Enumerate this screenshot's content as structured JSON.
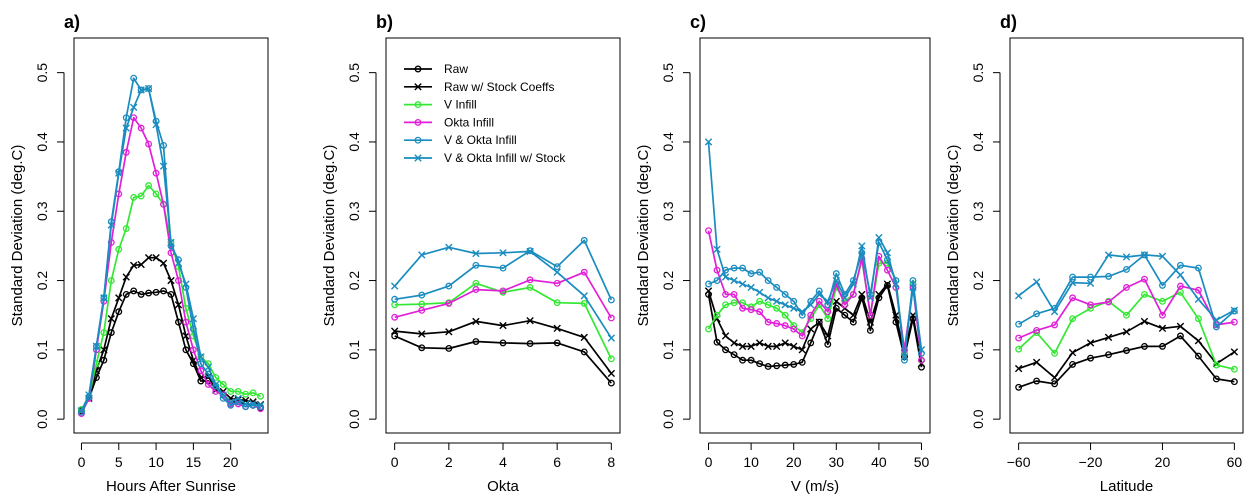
{
  "colors": {
    "raw": "#000000",
    "raw_stock": "#000000",
    "v_infill": "#33e833",
    "okta_infill": "#e020d8",
    "v_okta_infill": "#1a8cbf",
    "v_okta_stock": "#1a8cbf"
  },
  "legend": [
    {
      "key": "raw",
      "label": "Raw",
      "marker": "circle"
    },
    {
      "key": "raw_stock",
      "label": "Raw w/ Stock Coeffs",
      "marker": "x"
    },
    {
      "key": "v_infill",
      "label": "V Infill",
      "marker": "circle"
    },
    {
      "key": "okta_infill",
      "label": "Okta Infill",
      "marker": "circle"
    },
    {
      "key": "v_okta_infill",
      "label": "V & Okta Infill",
      "marker": "circle"
    },
    {
      "key": "v_okta_stock",
      "label": "V & Okta Infill w/ Stock",
      "marker": "x"
    }
  ],
  "chart_data": [
    {
      "type": "line",
      "panel": "a)",
      "xlabel": "Hours After Sunrise",
      "ylabel": "Standard Deviation (deg.C)",
      "xlim": [
        -1,
        25
      ],
      "ylim": [
        -0.02,
        0.55
      ],
      "xticks": [
        0,
        5,
        10,
        15,
        20
      ],
      "xtick_labels": [
        "0",
        "5",
        "10",
        "15",
        "20"
      ],
      "yticks": [
        0.0,
        0.1,
        0.2,
        0.3,
        0.4,
        0.5
      ],
      "ytick_labels": [
        "0.0",
        "0.1",
        "0.2",
        "0.3",
        "0.4",
        "0.5"
      ],
      "x": [
        0,
        1,
        2,
        3,
        4,
        5,
        6,
        7,
        8,
        9,
        10,
        11,
        12,
        13,
        14,
        15,
        16,
        17,
        18,
        19,
        20,
        21,
        22,
        23,
        24
      ],
      "series": [
        {
          "key": "raw",
          "values": [
            0.012,
            0.03,
            0.06,
            0.085,
            0.125,
            0.155,
            0.18,
            0.185,
            0.18,
            0.182,
            0.183,
            0.185,
            0.18,
            0.14,
            0.1,
            0.08,
            0.055,
            0.055,
            0.045,
            0.035,
            0.025,
            0.025,
            0.022,
            0.02,
            0.016
          ]
        },
        {
          "key": "raw_stock",
          "values": [
            0.012,
            0.03,
            0.07,
            0.1,
            0.145,
            0.175,
            0.205,
            0.222,
            0.223,
            0.233,
            0.233,
            0.225,
            0.2,
            0.165,
            0.12,
            0.085,
            0.06,
            0.062,
            0.042,
            0.04,
            0.03,
            0.028,
            0.027,
            0.025,
            0.021
          ]
        },
        {
          "key": "v_infill",
          "values": [
            0.014,
            0.032,
            0.08,
            0.125,
            0.2,
            0.245,
            0.275,
            0.32,
            0.322,
            0.337,
            0.325,
            0.31,
            0.255,
            0.22,
            0.16,
            0.12,
            0.09,
            0.08,
            0.06,
            0.05,
            0.04,
            0.04,
            0.036,
            0.038,
            0.033
          ]
        },
        {
          "key": "okta_infill",
          "values": [
            0.008,
            0.03,
            0.1,
            0.17,
            0.255,
            0.325,
            0.385,
            0.435,
            0.42,
            0.397,
            0.355,
            0.31,
            0.24,
            0.2,
            0.14,
            0.1,
            0.07,
            0.05,
            0.04,
            0.035,
            0.022,
            0.022,
            0.018,
            0.02,
            0.015
          ]
        },
        {
          "key": "v_okta_infill",
          "values": [
            0.01,
            0.032,
            0.105,
            0.175,
            0.285,
            0.357,
            0.435,
            0.492,
            0.475,
            0.477,
            0.43,
            0.395,
            0.25,
            0.23,
            0.19,
            0.13,
            0.08,
            0.065,
            0.048,
            0.03,
            0.02,
            0.025,
            0.018,
            0.02,
            0.018
          ]
        },
        {
          "key": "v_okta_stock",
          "values": [
            0.012,
            0.035,
            0.105,
            0.175,
            0.28,
            0.355,
            0.42,
            0.45,
            0.475,
            0.477,
            0.425,
            0.365,
            0.255,
            0.225,
            0.195,
            0.145,
            0.09,
            0.075,
            0.05,
            0.035,
            0.025,
            0.03,
            0.022,
            0.022,
            0.02
          ]
        }
      ]
    },
    {
      "type": "line",
      "panel": "b)",
      "xlabel": "Okta",
      "ylabel": "Standard Deviation (deg.C)",
      "xlim": [
        -0.32,
        8.32
      ],
      "ylim": [
        -0.02,
        0.55
      ],
      "xticks": [
        0,
        2,
        4,
        6,
        8
      ],
      "xtick_labels": [
        "0",
        "2",
        "4",
        "6",
        "8"
      ],
      "yticks": [
        0.0,
        0.1,
        0.2,
        0.3,
        0.4,
        0.5
      ],
      "ytick_labels": [
        "0.0",
        "0.1",
        "0.2",
        "0.3",
        "0.4",
        "0.5"
      ],
      "x": [
        0,
        1,
        2,
        3,
        4,
        5,
        6,
        7,
        8
      ],
      "series": [
        {
          "key": "raw",
          "values": [
            0.12,
            0.103,
            0.102,
            0.112,
            0.11,
            0.109,
            0.11,
            0.097,
            0.052
          ]
        },
        {
          "key": "raw_stock",
          "values": [
            0.127,
            0.123,
            0.126,
            0.141,
            0.135,
            0.142,
            0.131,
            0.118,
            0.066
          ]
        },
        {
          "key": "v_infill",
          "values": [
            0.165,
            0.166,
            0.168,
            0.196,
            0.183,
            0.19,
            0.168,
            0.167,
            0.087
          ]
        },
        {
          "key": "okta_infill",
          "values": [
            0.147,
            0.157,
            0.167,
            0.187,
            0.185,
            0.201,
            0.196,
            0.212,
            0.146
          ]
        },
        {
          "key": "v_okta_infill",
          "values": [
            0.173,
            0.179,
            0.192,
            0.222,
            0.218,
            0.243,
            0.22,
            0.258,
            0.172
          ]
        },
        {
          "key": "v_okta_stock",
          "values": [
            0.192,
            0.237,
            0.248,
            0.239,
            0.24,
            0.242,
            0.212,
            0.178,
            0.117
          ]
        }
      ]
    },
    {
      "type": "line",
      "panel": "c)",
      "xlabel": "V (m/s)",
      "ylabel": "Standard Deviation (deg.C)",
      "xlim": [
        -2,
        52
      ],
      "ylim": [
        -0.02,
        0.55
      ],
      "xticks": [
        0,
        10,
        20,
        30,
        40,
        50
      ],
      "xtick_labels": [
        "0",
        "10",
        "20",
        "30",
        "40",
        "50"
      ],
      "yticks": [
        0.0,
        0.1,
        0.2,
        0.3,
        0.4,
        0.5
      ],
      "ytick_labels": [
        "0.0",
        "0.1",
        "0.2",
        "0.3",
        "0.4",
        "0.5"
      ],
      "x": [
        0,
        2,
        4,
        6,
        8,
        10,
        12,
        14,
        16,
        18,
        20,
        22,
        24,
        26,
        28,
        30,
        32,
        34,
        36,
        38,
        40,
        42,
        44,
        46,
        48,
        50
      ],
      "series": [
        {
          "key": "raw",
          "values": [
            0.18,
            0.111,
            0.1,
            0.093,
            0.085,
            0.085,
            0.08,
            0.076,
            0.077,
            0.078,
            0.079,
            0.082,
            0.11,
            0.14,
            0.108,
            0.16,
            0.15,
            0.14,
            0.175,
            0.128,
            0.175,
            0.193,
            0.14,
            0.09,
            0.145,
            0.075
          ]
        },
        {
          "key": "raw_stock",
          "values": [
            0.185,
            0.145,
            0.12,
            0.11,
            0.105,
            0.105,
            0.11,
            0.105,
            0.105,
            0.11,
            0.105,
            0.1,
            0.13,
            0.14,
            0.12,
            0.17,
            0.16,
            0.15,
            0.18,
            0.14,
            0.18,
            0.195,
            0.15,
            0.095,
            0.15,
            0.08
          ]
        },
        {
          "key": "v_infill",
          "values": [
            0.13,
            0.15,
            0.165,
            0.168,
            0.168,
            0.162,
            0.17,
            0.165,
            0.16,
            0.15,
            0.135,
            0.125,
            0.145,
            0.165,
            0.145,
            0.19,
            0.17,
            0.18,
            0.23,
            0.15,
            0.225,
            0.225,
            0.2,
            0.095,
            0.195,
            0.085
          ]
        },
        {
          "key": "okta_infill",
          "values": [
            0.272,
            0.215,
            0.18,
            0.18,
            0.16,
            0.158,
            0.155,
            0.14,
            0.138,
            0.135,
            0.13,
            0.12,
            0.15,
            0.17,
            0.155,
            0.195,
            0.165,
            0.18,
            0.232,
            0.15,
            0.235,
            0.215,
            0.19,
            0.1,
            0.19,
            0.085
          ]
        },
        {
          "key": "v_okta_infill",
          "values": [
            0.195,
            0.2,
            0.215,
            0.218,
            0.218,
            0.21,
            0.212,
            0.2,
            0.19,
            0.18,
            0.17,
            0.15,
            0.17,
            0.185,
            0.165,
            0.21,
            0.18,
            0.2,
            0.24,
            0.18,
            0.255,
            0.23,
            0.2,
            0.085,
            0.2,
            0.095
          ]
        },
        {
          "key": "v_okta_stock",
          "values": [
            0.4,
            0.245,
            0.205,
            0.2,
            0.195,
            0.19,
            0.183,
            0.175,
            0.17,
            0.165,
            0.16,
            0.155,
            0.165,
            0.18,
            0.17,
            0.2,
            0.175,
            0.195,
            0.25,
            0.175,
            0.262,
            0.24,
            0.195,
            0.09,
            0.19,
            0.1
          ]
        }
      ]
    },
    {
      "type": "line",
      "panel": "d)",
      "xlabel": "Latitude",
      "ylabel": "Standard Deviation (deg.C)",
      "xlim": [
        -64.8,
        64.8
      ],
      "ylim": [
        -0.02,
        0.55
      ],
      "xticks": [
        -60,
        -20,
        20,
        60
      ],
      "xtick_labels": [
        "−60",
        "−20",
        "20",
        "60"
      ],
      "yticks": [
        0.0,
        0.1,
        0.2,
        0.3,
        0.4,
        0.5
      ],
      "ytick_labels": [
        "0.0",
        "0.1",
        "0.2",
        "0.3",
        "0.4",
        "0.5"
      ],
      "x": [
        -60,
        -50,
        -40,
        -30,
        -20,
        -10,
        0,
        10,
        20,
        30,
        40,
        50,
        60
      ],
      "series": [
        {
          "key": "raw",
          "values": [
            0.046,
            0.055,
            0.051,
            0.079,
            0.088,
            0.093,
            0.099,
            0.105,
            0.105,
            0.12,
            0.091,
            0.058,
            0.054
          ]
        },
        {
          "key": "raw_stock",
          "values": [
            0.073,
            0.082,
            0.06,
            0.096,
            0.11,
            0.118,
            0.126,
            0.141,
            0.131,
            0.134,
            0.113,
            0.08,
            0.097
          ]
        },
        {
          "key": "v_infill",
          "values": [
            0.101,
            0.125,
            0.095,
            0.145,
            0.16,
            0.17,
            0.15,
            0.18,
            0.17,
            0.183,
            0.145,
            0.078,
            0.072
          ]
        },
        {
          "key": "okta_infill",
          "values": [
            0.117,
            0.128,
            0.136,
            0.175,
            0.165,
            0.169,
            0.19,
            0.202,
            0.15,
            0.192,
            0.186,
            0.136,
            0.14
          ]
        },
        {
          "key": "v_okta_infill",
          "values": [
            0.137,
            0.152,
            0.16,
            0.205,
            0.205,
            0.206,
            0.216,
            0.237,
            0.193,
            0.222,
            0.218,
            0.133,
            0.156
          ]
        },
        {
          "key": "v_okta_stock",
          "values": [
            0.178,
            0.198,
            0.155,
            0.197,
            0.196,
            0.237,
            0.234,
            0.237,
            0.235,
            0.208,
            0.173,
            0.143,
            0.157
          ]
        }
      ]
    }
  ]
}
